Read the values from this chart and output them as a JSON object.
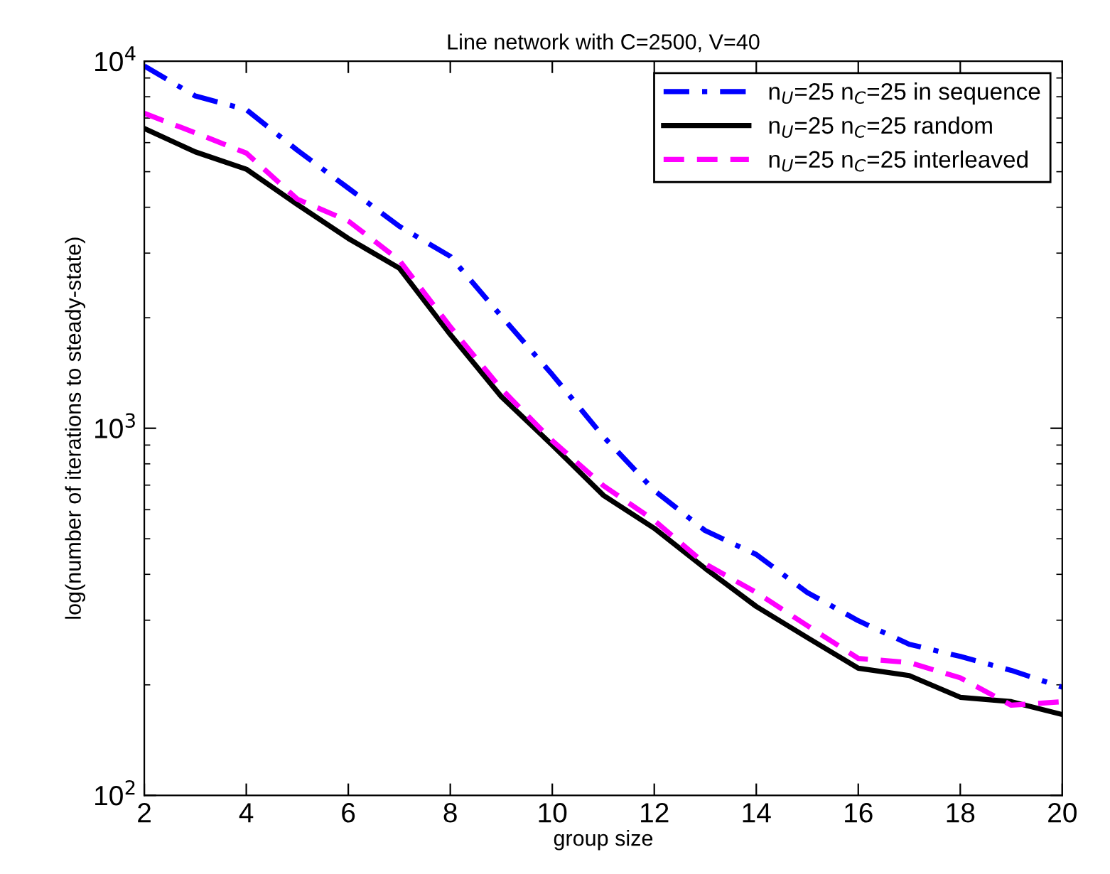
{
  "chart_data": {
    "type": "line",
    "title": "Line network with C=2500, V=40",
    "xlabel": "group size",
    "ylabel": "log(number of iterations to steady-state)",
    "x": [
      2,
      3,
      4,
      5,
      6,
      7,
      8,
      9,
      10,
      11,
      12,
      13,
      14,
      15,
      16,
      17,
      18,
      19,
      20
    ],
    "series": [
      {
        "name": "n$_{U}$=25 n$_{C}$=25 in sequence",
        "color": "#0000ff",
        "line_style": "dashdot",
        "values": [
          9700,
          8040,
          7380,
          5720,
          4510,
          3550,
          2940,
          2020,
          1400,
          950,
          677,
          526,
          453,
          357,
          299,
          258,
          239,
          219,
          197
        ]
      },
      {
        "name": "n$_{U}$=25 n$_{C}$=25 random",
        "color": "#000000",
        "line_style": "solid",
        "values": [
          6560,
          5660,
          5080,
          4070,
          3290,
          2730,
          1800,
          1220,
          900,
          657,
          534,
          415,
          327,
          269,
          222,
          212,
          185,
          180,
          166
        ]
      },
      {
        "name": "n$_{U}$=25 n$_{C}$=25 interleaved",
        "color": "#ff00ff",
        "line_style": "dashed",
        "values": [
          7210,
          6380,
          5620,
          4210,
          3670,
          2870,
          1890,
          1280,
          925,
          698,
          561,
          427,
          357,
          290,
          236,
          230,
          209,
          176,
          180
        ]
      }
    ],
    "log": "y",
    "xlim": [
      2,
      20
    ],
    "xticks": [
      2,
      4,
      6,
      8,
      10,
      12,
      14,
      16,
      18,
      20
    ],
    "ylim": [
      100,
      10000
    ],
    "yticks": [
      {
        "value": 100,
        "label": "10$^{2}$"
      },
      {
        "value": 1000,
        "label": "10$^{3}$"
      },
      {
        "value": 10000,
        "label": "10$^{4}$"
      }
    ],
    "grid": false,
    "legend": "top right",
    "marker": "none"
  }
}
